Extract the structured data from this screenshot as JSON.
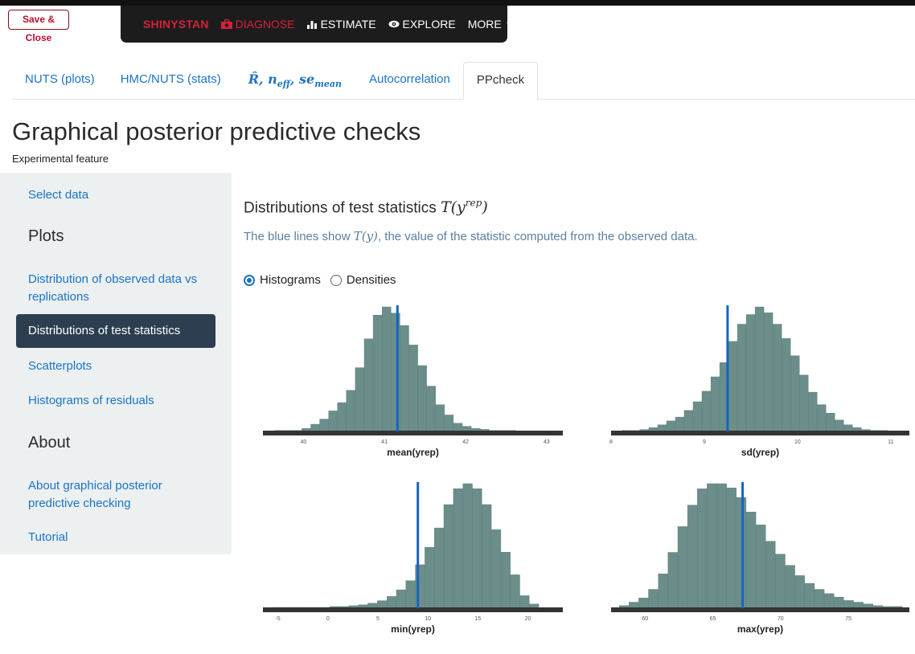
{
  "header": {
    "save_close_label": "Save & Close",
    "nav": {
      "brand": "SHINYSTAN",
      "diagnose": "DIAGNOSE",
      "estimate": "ESTIMATE",
      "explore": "EXPLORE",
      "more": "MORE"
    }
  },
  "tabs": [
    {
      "label": "NUTS (plots)"
    },
    {
      "label": "HMC/NUTS (stats)"
    },
    {
      "label": "R̂, n_eff, se_mean"
    },
    {
      "label": "Autocorrelation"
    },
    {
      "label": "PPcheck",
      "active": true
    }
  ],
  "page": {
    "title": "Graphical posterior predictive checks",
    "subtitle": "Experimental feature"
  },
  "sidebar": {
    "select_data": "Select data",
    "plots_heading": "Plots",
    "item_observed": "Distribution of observed data vs replications",
    "item_test_stats": "Distributions of test statistics",
    "item_scatter": "Scatterplots",
    "item_residuals": "Histograms of residuals",
    "about_heading": "About",
    "item_about": "About graphical posterior predictive checking",
    "item_tutorial": "Tutorial"
  },
  "main": {
    "heading_text": "Distributions of test statistics ",
    "heading_math": "T(y",
    "heading_math_sup": "rep",
    "heading_math_close": ")",
    "desc_before": "The blue lines show ",
    "desc_math": "T(y)",
    "desc_after": ", the value of the statistic computed from the observed data.",
    "radio_histograms": "Histograms",
    "radio_densities": "Densities",
    "selected": "Histograms"
  },
  "colors": {
    "bar_fill": "#6b8e8a",
    "bar_stroke": "#5a7a76",
    "line": "#1565c0",
    "axis": "#333333"
  },
  "chart_data": [
    {
      "type": "bar",
      "xlabel": "mean(yrep)",
      "ticks": [
        40,
        41,
        42,
        43
      ],
      "xlim": [
        39.5,
        43.2
      ],
      "observed": 41.16,
      "bins": {
        "start": 39.65,
        "width": 0.11
      },
      "values": [
        1,
        1,
        1,
        3,
        7,
        12,
        20,
        28,
        40,
        62,
        90,
        113,
        121,
        115,
        103,
        84,
        64,
        44,
        26,
        16,
        8,
        5,
        3,
        2,
        1,
        1,
        1
      ]
    },
    {
      "type": "bar",
      "xlabel": "sd(yrep)",
      "ticks": [
        8,
        9,
        10,
        11
      ],
      "xlim": [
        8.0,
        11.2
      ],
      "observed": 9.25,
      "bins": {
        "start": 8.12,
        "width": 0.095
      },
      "values": [
        1,
        1,
        2,
        4,
        7,
        11,
        15,
        22,
        31,
        42,
        57,
        72,
        94,
        112,
        122,
        130,
        124,
        112,
        97,
        79,
        59,
        41,
        28,
        19,
        12,
        7,
        4,
        2,
        1,
        1
      ]
    },
    {
      "type": "bar",
      "xlabel": "min(yrep)",
      "ticks": [
        -5,
        0,
        5,
        10,
        15,
        20
      ],
      "xlim": [
        -6.5,
        23.5
      ],
      "observed": 9.0,
      "bins": {
        "start": -5.5,
        "width": 0.95
      },
      "values": [
        1,
        1,
        1,
        1,
        1,
        1,
        2,
        2,
        3,
        4,
        6,
        9,
        14,
        22,
        33,
        52,
        73,
        96,
        124,
        143,
        149,
        143,
        124,
        94,
        67,
        40,
        15,
        5
      ]
    },
    {
      "type": "bar",
      "xlabel": "max(yrep)",
      "ticks": [
        60,
        65,
        70,
        75
      ],
      "xlim": [
        57.5,
        79.5
      ],
      "observed": 67.2,
      "bins": {
        "start": 58.1,
        "width": 0.72
      },
      "values": [
        3,
        7,
        12,
        22,
        40,
        65,
        95,
        120,
        139,
        145,
        145,
        140,
        129,
        112,
        97,
        78,
        63,
        50,
        38,
        29,
        22,
        17,
        13,
        9,
        7,
        5,
        3,
        2,
        2
      ]
    }
  ]
}
